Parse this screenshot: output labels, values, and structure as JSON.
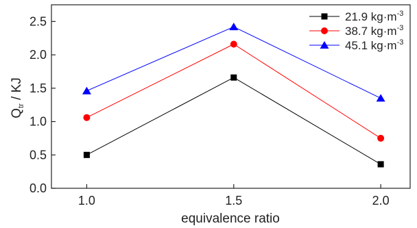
{
  "chart_data": {
    "type": "line",
    "x": [
      1.0,
      1.5,
      2.0
    ],
    "x_tick_labels": [
      "1.0",
      "1.5",
      "2.0"
    ],
    "xlim": [
      0.88,
      2.1
    ],
    "ylim": [
      0.0,
      2.75
    ],
    "y_ticks": [
      0.0,
      0.5,
      1.0,
      1.5,
      2.0,
      2.5
    ],
    "y_tick_labels": [
      "0.0",
      "0.5",
      "1.0",
      "1.5",
      "2.0",
      "2.5"
    ],
    "xlabel": "equivalence ratio",
    "ylabel": {
      "base": "Q",
      "sub": "tr",
      "suffix": " / KJ"
    },
    "grid": false,
    "legend_position": "top-right",
    "series": [
      {
        "name": "21.9 kg·m",
        "name_sup": "-3",
        "color": "#000000",
        "marker": "square",
        "values": [
          0.5,
          1.66,
          0.36
        ]
      },
      {
        "name": "38.7 kg·m",
        "name_sup": "-3",
        "color": "#ff0000",
        "marker": "circle",
        "values": [
          1.06,
          2.16,
          0.75
        ]
      },
      {
        "name": "45.1 kg·m",
        "name_sup": "-3",
        "color": "#0000ff",
        "marker": "triangle",
        "values": [
          1.46,
          2.42,
          1.35
        ]
      }
    ]
  }
}
